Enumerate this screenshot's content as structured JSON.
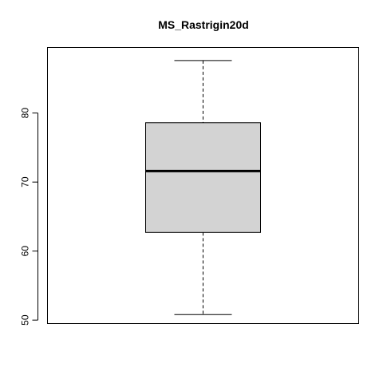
{
  "chart_data": {
    "type": "boxplot",
    "title": "MS_Rastrigin20d",
    "xlabel": "",
    "ylabel": "",
    "ylim": [
      49.5,
      89.5
    ],
    "yticks": [
      50,
      60,
      70,
      80
    ],
    "ytick_labels": [
      "50",
      "60",
      "70",
      "80"
    ],
    "grid": false,
    "box": {
      "min": 50.8,
      "q1": 62.7,
      "median": 71.6,
      "q3": 78.6,
      "max": 87.6
    },
    "colors": {
      "box_fill": "#d3d3d3",
      "stroke": "#000000"
    }
  }
}
